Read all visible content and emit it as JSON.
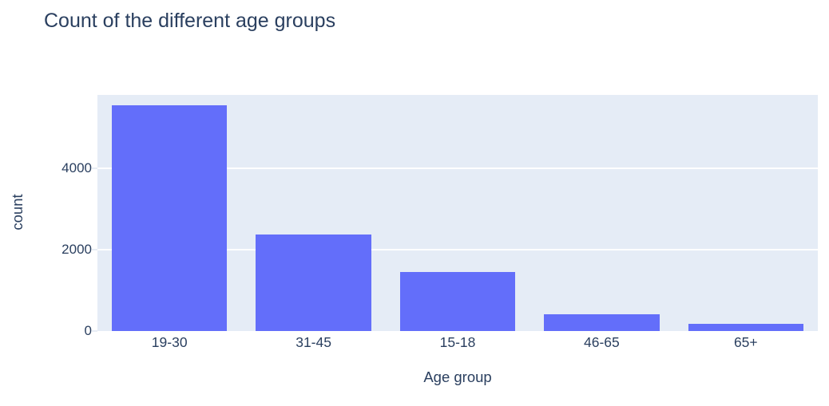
{
  "title": "Count of the different age groups",
  "colors": {
    "title_text": "#2a3f5f",
    "axis_text": "#2a3f5f",
    "bar": "#636efa",
    "plot_bg": "#e5ecf6",
    "grid": "#ffffff",
    "page_bg": "#ffffff"
  },
  "chart_data": {
    "type": "bar",
    "title": "Count of the different age groups",
    "xlabel": "Age group",
    "ylabel": "count",
    "categories": [
      "19-30",
      "31-45",
      "15-18",
      "46-65",
      "65+"
    ],
    "values": [
      5550,
      2370,
      1460,
      410,
      170
    ],
    "yticks": [
      0,
      2000,
      4000
    ],
    "ylim": [
      0,
      5800
    ],
    "grid": true,
    "legend": false,
    "bar_width_fraction": 0.8
  }
}
